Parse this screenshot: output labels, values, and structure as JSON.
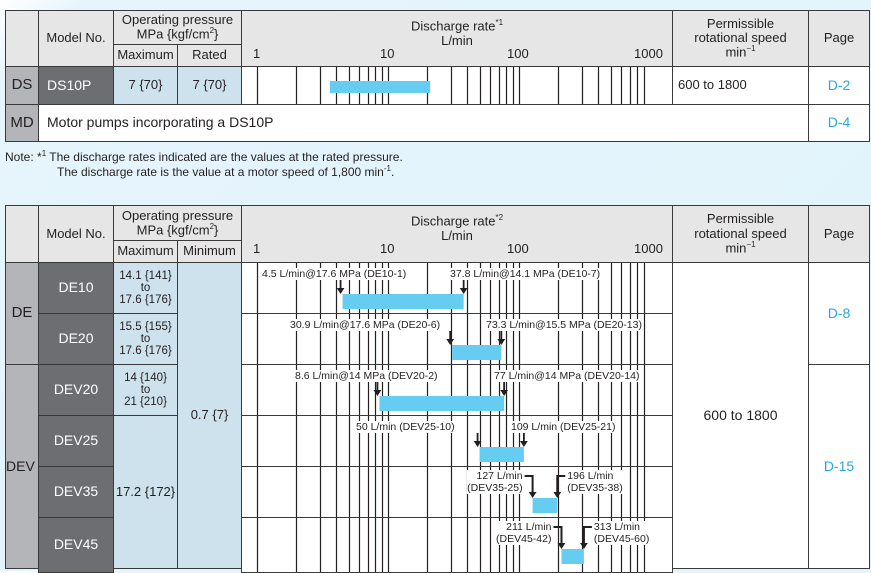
{
  "header": {
    "model_no": "Model No.",
    "pressure_title": "Operating pressure",
    "pressure_unit_pre": "MPa {kgf/cm",
    "pressure_unit_sup": "2",
    "pressure_unit_post": "}",
    "discharge_title": "Discharge rate",
    "discharge_unit": "L/min",
    "axis_ticks": [
      "1",
      "10",
      "100",
      "1000"
    ],
    "speed_line1": "Permissible",
    "speed_line2": "rotational speed",
    "speed_unit": "min",
    "speed_unit_sup": "−1",
    "page": "Page"
  },
  "table1": {
    "discharge_sup": "*1",
    "sub_max": "Maximum",
    "sub_second": "Rated",
    "rows": [
      {
        "series": "DS",
        "model": "DS10P",
        "max": "7 {70}",
        "rated": "7 {70}",
        "speed": "600 to 1800",
        "page": "D-2",
        "range": [
          3.6,
          21
        ]
      }
    ],
    "md_row": {
      "series": "MD",
      "text": "Motor pumps incorporating a DS10P",
      "page": "D-4"
    }
  },
  "note": {
    "prefix": "Note: *",
    "sup": "1",
    "line1": " The discharge rates indicated are the values at the rated pressure.",
    "line2_pre": "The discharge rate is the value at a motor speed of 1,800 min",
    "line2_sup": "-1",
    "line2_post": "."
  },
  "table2": {
    "discharge_sup": "*2",
    "sub_max": "Maximum",
    "sub_second": "Minimum",
    "series": [
      {
        "name": "DE",
        "page": "D-8"
      },
      {
        "name": "DEV",
        "page": "D-15"
      }
    ],
    "minimum": "0.7 {7}",
    "speed": "600 to 1800",
    "rows": [
      {
        "model": "DE10",
        "max": [
          "14.1 {141}",
          "to",
          "17.6 {176}"
        ],
        "min_value": 4.5,
        "max_value": 37.8,
        "min_label": "4.5 L/min@17.6 MPa (DE10-1)",
        "max_label": "37.8 L/min@14.1 MPa (DE10-7)"
      },
      {
        "model": "DE20",
        "max": [
          "15.5 {155}",
          "to",
          "17.6 {176}"
        ],
        "min_value": 30.9,
        "max_value": 73.3,
        "min_label": "30.9 L/min@17.6 MPa (DE20-6)",
        "max_label": "73.3 L/min@15.5 MPa (DE20-13)"
      },
      {
        "model": "DEV20",
        "max": [
          "14 {140}",
          "to",
          "21 {210}"
        ],
        "min_value": 8.6,
        "max_value": 77,
        "min_label": "8.6 L/min@14 MPa (DEV20-2)",
        "max_label": "77 L/min@14 MPa (DEV20-14)"
      },
      {
        "model": "DEV25",
        "min_value": 50,
        "max_value": 109,
        "min_label": "50 L/min (DEV25-10)",
        "max_label": "109 L/min (DEV25-21)"
      },
      {
        "model": "DEV35",
        "min_value": 127,
        "max_value": 196,
        "min_label": [
          "127 L/min",
          "(DEV35-25)"
        ],
        "max_label": [
          "196 L/min",
          "(DEV35-38)"
        ]
      },
      {
        "model": "DEV45",
        "min_value": 211,
        "max_value": 313,
        "min_label": [
          "211 L/min",
          "(DEV45-42)"
        ],
        "max_label": [
          "313 L/min",
          "(DEV45-60)"
        ]
      }
    ],
    "shared_max": "17.2 {172}"
  },
  "colors": {
    "bar": "#66ccf2",
    "link": "#2aa7df",
    "model_cell": "#6d6e71",
    "series_cell": "#b4b5b8",
    "pressure_cell": "#cde2ed",
    "header": "#e6e6e7"
  }
}
